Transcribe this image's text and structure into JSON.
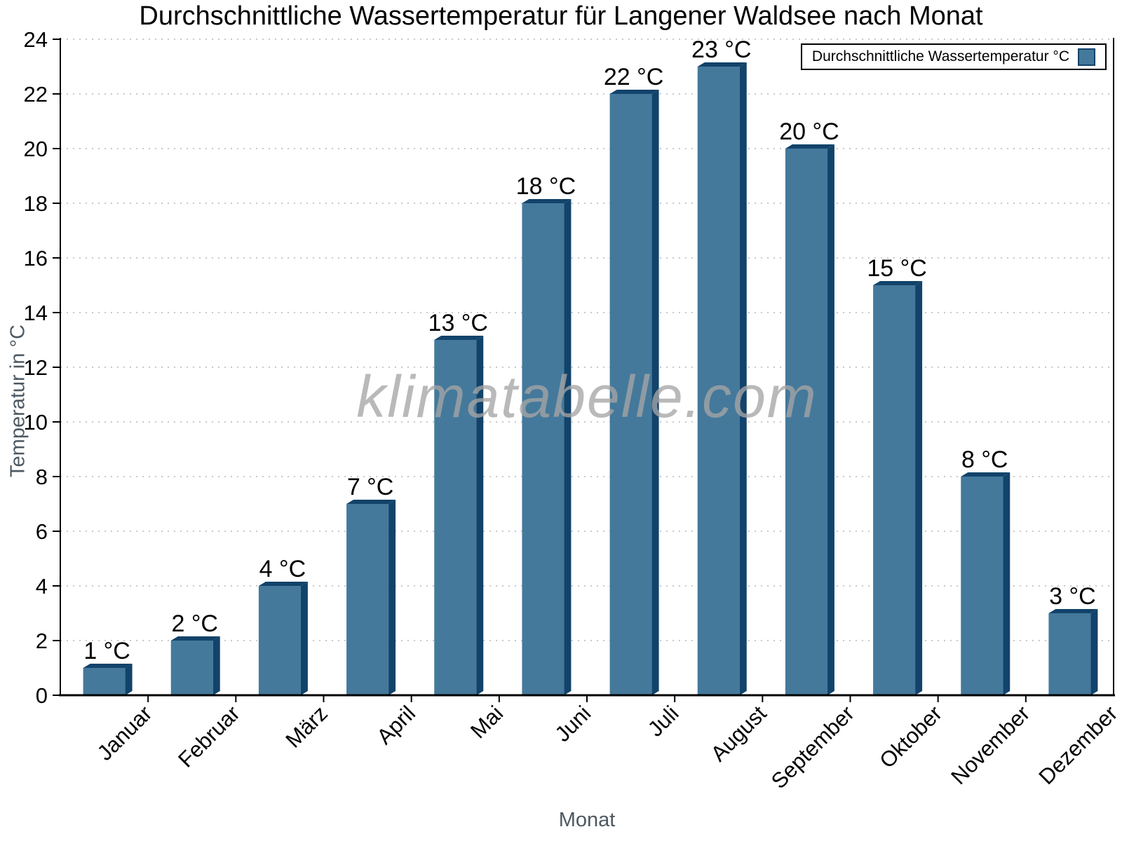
{
  "chart_data": {
    "type": "bar",
    "title": "Durchschnittliche Wassertemperatur für Langener Waldsee nach Monat",
    "xlabel": "Monat",
    "ylabel": "Temperatur in °C",
    "categories": [
      "Januar",
      "Februar",
      "März",
      "April",
      "Mai",
      "Juni",
      "Juli",
      "August",
      "September",
      "Oktober",
      "November",
      "Dezember"
    ],
    "values": [
      1,
      2,
      4,
      7,
      13,
      18,
      22,
      23,
      20,
      15,
      8,
      3
    ],
    "value_suffix": " °C",
    "value_labels": [
      "1 °C",
      "2 °C",
      "4 °C",
      "7 °C",
      "13 °C",
      "18 °C",
      "22 °C",
      "23 °C",
      "20 °C",
      "15 °C",
      "8 °C",
      "3 °C"
    ],
    "yticks": [
      0,
      2,
      4,
      6,
      8,
      10,
      12,
      14,
      16,
      18,
      20,
      22,
      24
    ],
    "ylim": [
      0,
      24
    ],
    "grid": "horizontal-dotted",
    "legend": {
      "label": "Durchschnittliche Wassertemperatur °C",
      "position": "top-right"
    }
  },
  "watermark": {
    "text": "klimatabelle.com"
  },
  "colors": {
    "bar_front": "#44799B",
    "bar_side": "#12436A",
    "grid": "#c9c9c9",
    "axis": "#000000",
    "axis_title": "#4d5962",
    "tick_label": "#000000",
    "watermark": "#a5a5a5"
  }
}
